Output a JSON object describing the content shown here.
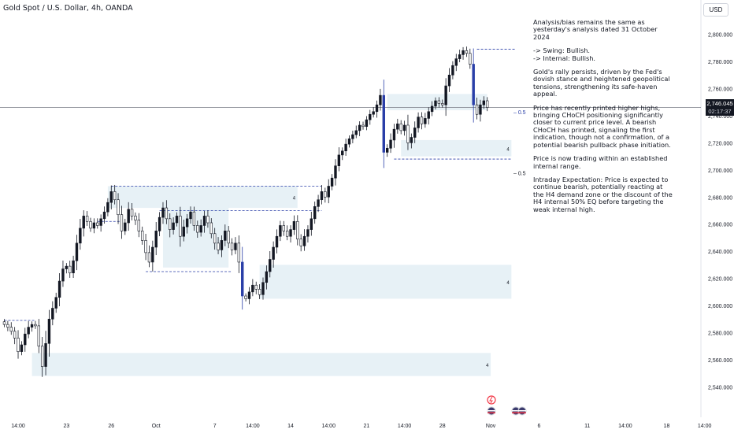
{
  "header": {
    "title": "Gold Spot / U.S. Dollar, 4h, OANDA",
    "currency_button": "USD"
  },
  "notes": [
    "Analysis/bias remains the same as yesterday's analysis dated 31 October 2024",
    "-> Swing:  Bullish.\n-> Internal:  Bullish.",
    "Gold's rally persists, driven by the Fed's dovish stance and heightened geopolitical tensions, strengthening its safe-haven appeal.",
    "Price has recently printed higher highs, bringing CHoCH positioning significantly closer to current price level. A bearish CHoCH has printed, signaling the first indication, though not a confirmation, of a potential bearish pullback phase initiation.",
    "Price is now trading within an established internal range.",
    "Intraday Expectation: Price is expected to continue bearish, potentially reacting at the H4 demand zone or the discount of the H4 internal 50% EQ before targeting the weak internal high."
  ],
  "colors": {
    "bull_candle": "#131722",
    "bear_candle": "#ffffff",
    "impulse_candle": "#2a3fa8",
    "zone_fill": "#e7f1f6",
    "zone_line": "#2a3fa8",
    "dashed_line": "#2a3fa8",
    "price_line": "#787b86",
    "grid_text": "#131722"
  },
  "icons": [
    "lightning-event-icon",
    "us-flag-event-icon"
  ],
  "chart_data": {
    "type": "candlestick",
    "symbol": "XAUUSD",
    "timeframe": "4h",
    "ylim": [
      2535,
      2805
    ],
    "ytick_labels": [
      "2,800.000",
      "2,780.000",
      "2,760.000",
      "2,740.000",
      "2,720.000",
      "2,700.000",
      "2,680.000",
      "2,660.000",
      "2,640.000",
      "2,620.000",
      "2,600.000",
      "2,580.000",
      "2,560.000",
      "2,540.000"
    ],
    "yticks": [
      2800,
      2780,
      2760,
      2740,
      2720,
      2700,
      2680,
      2660,
      2640,
      2620,
      2600,
      2580,
      2560,
      2540
    ],
    "xtick_labels": [
      "14:00",
      "23",
      "26",
      "Oct",
      "7",
      "14:00",
      "14",
      "14:00",
      "21",
      "14:00",
      "28",
      "Nov",
      "6",
      "11",
      "14:00",
      "18",
      "14:00"
    ],
    "xtick_index": [
      4,
      18,
      31,
      44,
      61,
      72,
      83,
      94,
      105,
      116,
      127,
      141,
      155,
      169,
      180,
      192,
      203
    ],
    "current_price": 2746.045,
    "current_price_label": "2,746.045",
    "countdown": "02:17:37",
    "eq_label": "0.5",
    "zone_tag": "4",
    "closes": [
      2586,
      2584,
      2581,
      2576,
      2566,
      2571,
      2579,
      2584,
      2586,
      2585,
      2570,
      2555,
      2572,
      2590,
      2598,
      2606,
      2618,
      2627,
      2629,
      2624,
      2633,
      2646,
      2657,
      2666,
      2662,
      2657,
      2661,
      2659,
      2664,
      2669,
      2676,
      2684,
      2678,
      2667,
      2655,
      2661,
      2671,
      2666,
      2663,
      2655,
      2648,
      2639,
      2632,
      2643,
      2655,
      2665,
      2672,
      2664,
      2656,
      2661,
      2666,
      2651,
      2658,
      2664,
      2669,
      2659,
      2654,
      2659,
      2666,
      2661,
      2653,
      2646,
      2641,
      2648,
      2655,
      2646,
      2641,
      2646,
      2632,
      2607,
      2605,
      2610,
      2615,
      2612,
      2608,
      2617,
      2625,
      2634,
      2643,
      2651,
      2659,
      2655,
      2651,
      2656,
      2662,
      2649,
      2644,
      2651,
      2656,
      2664,
      2673,
      2678,
      2684,
      2680,
      2688,
      2694,
      2703,
      2711,
      2714,
      2719,
      2723,
      2726,
      2729,
      2733,
      2732,
      2737,
      2741,
      2743,
      2748,
      2755,
      2713,
      2716,
      2722,
      2730,
      2734,
      2729,
      2733,
      2720,
      2724,
      2731,
      2739,
      2734,
      2738,
      2743,
      2747,
      2751,
      2749,
      2748,
      2762,
      2770,
      2777,
      2782,
      2785,
      2788,
      2786,
      2778,
      2748,
      2741,
      2748,
      2751,
      2746.045
    ],
    "zones": [
      {
        "type": "supply",
        "top": 2688,
        "bottom": 2672,
        "start": 30,
        "end": 85
      },
      {
        "type": "internal",
        "top": 2674,
        "bottom": 2628,
        "start": 46,
        "end": 65
      },
      {
        "type": "demand",
        "top": 2630,
        "bottom": 2605,
        "start": 74,
        "end": 147
      },
      {
        "type": "supply",
        "top": 2756,
        "bottom": 2744,
        "start": 111,
        "end": 140
      },
      {
        "type": "demand",
        "top": 2722,
        "bottom": 2710,
        "start": 115,
        "end": 147
      },
      {
        "type": "demand",
        "top": 2565,
        "bottom": 2548,
        "start": 8,
        "end": 141
      }
    ],
    "levels": [
      {
        "price": 2789,
        "start": 137,
        "end": 148
      },
      {
        "price": 2708,
        "start": 113,
        "end": 147
      },
      {
        "price": 2688,
        "start": 31,
        "end": 92
      },
      {
        "price": 2670,
        "start": 45,
        "end": 92
      },
      {
        "price": 2662,
        "start": 27,
        "end": 34
      },
      {
        "price": 2625,
        "start": 41,
        "end": 66
      },
      {
        "price": 2589,
        "start": 0,
        "end": 9
      }
    ]
  }
}
